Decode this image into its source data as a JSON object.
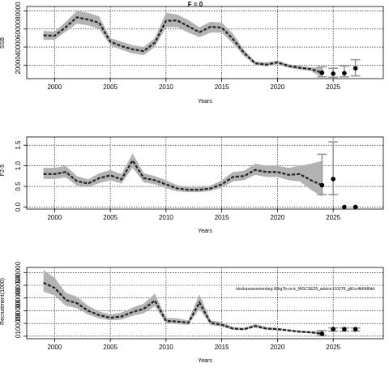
{
  "title": "F = 0",
  "chart_data": [
    {
      "type": "line",
      "xlabel": "Years",
      "ylabel": "SSB",
      "xlim": [
        1997.5,
        2029.5
      ],
      "ylim": [
        5000,
        85000
      ],
      "xticks": [
        2000,
        2005,
        2010,
        2015,
        2020,
        2025
      ],
      "yticks": [
        20000,
        40000,
        60000,
        80000
      ],
      "yticklabels": [
        "20000",
        "40000",
        "60000",
        "80000"
      ],
      "grid": true,
      "x": [
        1999,
        2000,
        2001,
        2002,
        2003,
        2004,
        2005,
        2006,
        2007,
        2008,
        2009,
        2010,
        2011,
        2012,
        2013,
        2014,
        2015,
        2016,
        2017,
        2018,
        2019,
        2020,
        2021,
        2022,
        2023,
        2024
      ],
      "median": [
        53000,
        52500,
        62000,
        73000,
        70500,
        67000,
        46000,
        41000,
        37500,
        35500,
        45000,
        69000,
        69500,
        63000,
        56500,
        62500,
        61500,
        49000,
        33500,
        22000,
        20500,
        23000,
        19000,
        17000,
        15500,
        11500
      ],
      "upper": [
        58000,
        57000,
        68000,
        80000,
        78000,
        74000,
        50000,
        46000,
        42000,
        40000,
        50000,
        78000,
        76000,
        70000,
        62000,
        68000,
        67000,
        55000,
        37000,
        24000,
        23000,
        25000,
        21000,
        19000,
        17500,
        17500
      ],
      "lower": [
        48000,
        48000,
        57000,
        66000,
        64000,
        60000,
        42000,
        37000,
        33000,
        31000,
        40000,
        62000,
        62000,
        56000,
        51000,
        56000,
        56000,
        44000,
        30000,
        20000,
        18500,
        21000,
        17000,
        15000,
        13500,
        6000
      ],
      "projection": [
        {
          "x": 2024,
          "y": 11500,
          "low": 7000,
          "high": 18000
        },
        {
          "x": 2025,
          "y": 10500,
          "low": 6500,
          "high": 16500
        },
        {
          "x": 2026,
          "y": 11000,
          "low": 7000,
          "high": 19000
        },
        {
          "x": 2027,
          "y": 16500,
          "low": 8000,
          "high": 26000
        }
      ]
    },
    {
      "type": "line",
      "xlabel": "Years",
      "ylabel": "F2-5",
      "xlim": [
        1997.5,
        2029.5
      ],
      "ylim": [
        -0.05,
        1.7
      ],
      "xticks": [
        2000,
        2005,
        2010,
        2015,
        2020,
        2025
      ],
      "yticks": [
        0.0,
        0.5,
        1.0,
        1.5
      ],
      "yticklabels": [
        "0.0",
        "0.5",
        "1.0",
        "1.5"
      ],
      "grid": true,
      "x": [
        1999,
        2000,
        2001,
        2002,
        2003,
        2004,
        2005,
        2006,
        2007,
        2008,
        2009,
        2010,
        2011,
        2012,
        2013,
        2014,
        2015,
        2016,
        2017,
        2018,
        2019,
        2020,
        2021,
        2022,
        2023,
        2024
      ],
      "median": [
        0.8,
        0.8,
        0.85,
        0.63,
        0.57,
        0.7,
        0.77,
        0.67,
        1.13,
        0.7,
        0.65,
        0.55,
        0.45,
        0.42,
        0.42,
        0.45,
        0.55,
        0.73,
        0.75,
        0.9,
        0.85,
        0.85,
        0.78,
        0.8,
        0.65,
        0.53
      ],
      "upper": [
        0.95,
        0.95,
        1.0,
        0.75,
        0.67,
        0.82,
        0.9,
        0.8,
        1.3,
        0.82,
        0.75,
        0.65,
        0.53,
        0.48,
        0.48,
        0.52,
        0.65,
        0.85,
        0.88,
        1.05,
        1.0,
        1.0,
        0.95,
        1.0,
        1.05,
        1.12
      ],
      "lower": [
        0.68,
        0.68,
        0.72,
        0.52,
        0.48,
        0.58,
        0.65,
        0.57,
        0.95,
        0.6,
        0.55,
        0.46,
        0.38,
        0.36,
        0.36,
        0.39,
        0.47,
        0.62,
        0.65,
        0.78,
        0.73,
        0.73,
        0.65,
        0.62,
        0.42,
        0.25
      ],
      "projection": [
        {
          "x": 2024,
          "y": 0.53,
          "low": 0.3,
          "high": 1.28
        },
        {
          "x": 2025,
          "y": 0.68,
          "low": 0.3,
          "high": 1.58
        },
        {
          "x": 2026,
          "y": 0.0,
          "low": 0.0,
          "high": 0.0
        },
        {
          "x": 2027,
          "y": 0.0,
          "low": 0.0,
          "high": 0.0
        }
      ]
    },
    {
      "type": "line",
      "xlabel": "Years",
      "ylabel": "Recruitment(1000)",
      "xlim": [
        1997.5,
        2029.5
      ],
      "ylim": [
        -20000,
        540000
      ],
      "xticks": [
        2000,
        2005,
        2010,
        2015,
        2020,
        2025
      ],
      "yticks": [
        0,
        100000,
        200000,
        300000,
        400000,
        500000
      ],
      "yticklabels": [
        "0",
        "100000",
        "200000",
        "300000",
        "400000",
        "500000"
      ],
      "grid": true,
      "annotation": "stockassessmentorg.Whg7b-ce-k_WGCSE25_advice.r10278_glt1cr4b6fd6dd",
      "x": [
        1999,
        2000,
        2001,
        2002,
        2003,
        2004,
        2005,
        2006,
        2007,
        2008,
        2009,
        2010,
        2011,
        2012,
        2013,
        2014,
        2015,
        2016,
        2017,
        2018,
        2019,
        2020,
        2021,
        2022,
        2023,
        2024
      ],
      "median": [
        420000,
        380000,
        285000,
        260000,
        200000,
        165000,
        145000,
        155000,
        190000,
        215000,
        280000,
        120000,
        115000,
        105000,
        265000,
        105000,
        90000,
        60000,
        55000,
        80000,
        60000,
        55000,
        45000,
        35000,
        30000,
        20000
      ],
      "upper": [
        520000,
        460000,
        340000,
        310000,
        240000,
        195000,
        170000,
        185000,
        225000,
        255000,
        335000,
        145000,
        140000,
        125000,
        330000,
        125000,
        110000,
        72000,
        66000,
        95000,
        72000,
        66000,
        55000,
        45000,
        40000,
        40000
      ],
      "lower": [
        350000,
        320000,
        240000,
        220000,
        170000,
        140000,
        125000,
        130000,
        160000,
        180000,
        235000,
        100000,
        95000,
        88000,
        215000,
        88000,
        75000,
        50000,
        46000,
        68000,
        50000,
        46000,
        37000,
        28000,
        22000,
        8000
      ],
      "projection": [
        {
          "x": 2024,
          "y": 20000,
          "low": 5000,
          "high": 45000
        },
        {
          "x": 2025,
          "y": 55000,
          "low": 40000,
          "high": 65000
        },
        {
          "x": 2026,
          "y": 55000,
          "low": 40000,
          "high": 65000
        },
        {
          "x": 2027,
          "y": 55000,
          "low": 40000,
          "high": 65000
        }
      ]
    }
  ]
}
